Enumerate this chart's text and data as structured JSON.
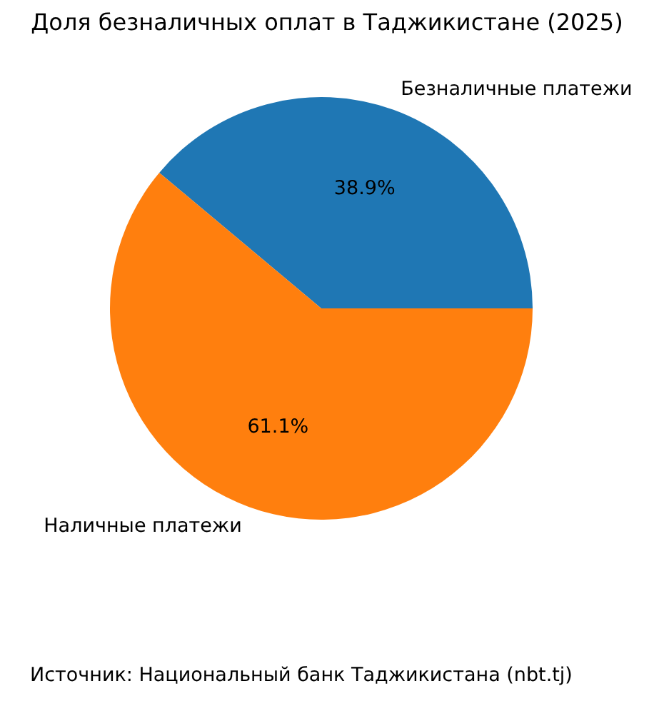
{
  "chart_data": {
    "type": "pie",
    "title": "Доля безналичных оплат в Таджикистане (2025)",
    "categories": [
      "Безналичные платежи",
      "Наличные платежи"
    ],
    "values": [
      38.9,
      61.1
    ],
    "colors": [
      "#1f77b4",
      "#ff7f0e"
    ],
    "value_labels": [
      "38.9%",
      "61.1%"
    ],
    "annotations": [
      "Источник: Национальный банк Таджикистана (nbt.tj)"
    ]
  }
}
